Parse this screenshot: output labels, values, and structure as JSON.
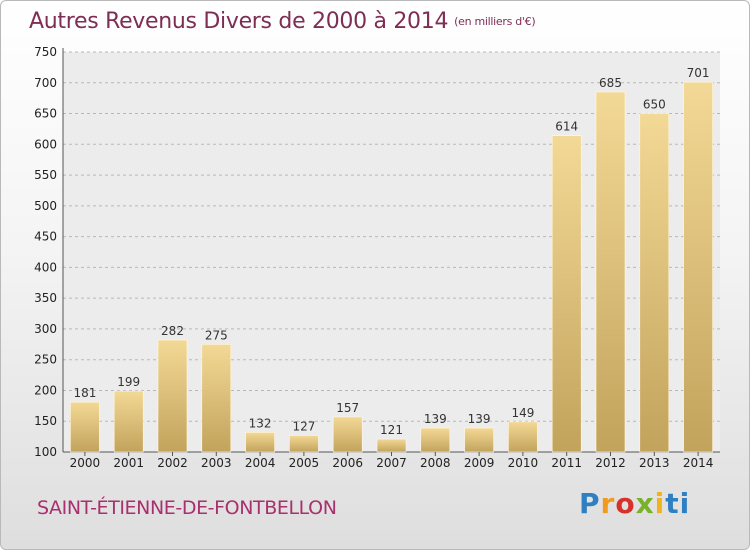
{
  "title": "Autres Revenus Divers de 2000 à 2014",
  "unit": "(en milliers d'€)",
  "city": "SAINT-ÉTIENNE-DE-FONTBELLON",
  "logo_letters": [
    "P",
    "r",
    "o",
    "x",
    "i",
    "ti"
  ],
  "colors": {
    "bar_light": "#f3d996",
    "bar_dark": "#c2a35c",
    "title": "#7e2d54",
    "city": "#a9306e"
  },
  "chart_data": {
    "type": "bar",
    "categories": [
      "2000",
      "2001",
      "2002",
      "2003",
      "2004",
      "2005",
      "2006",
      "2007",
      "2008",
      "2009",
      "2010",
      "2011",
      "2012",
      "2013",
      "2014"
    ],
    "values": [
      181,
      199,
      282,
      275,
      132,
      127,
      157,
      121,
      139,
      139,
      149,
      614,
      685,
      650,
      701
    ],
    "ylim": [
      100,
      750
    ],
    "yticks": [
      100,
      150,
      200,
      250,
      300,
      350,
      400,
      450,
      500,
      550,
      600,
      650,
      700,
      750
    ],
    "grid": "horizontal dashed",
    "legend": "none"
  }
}
